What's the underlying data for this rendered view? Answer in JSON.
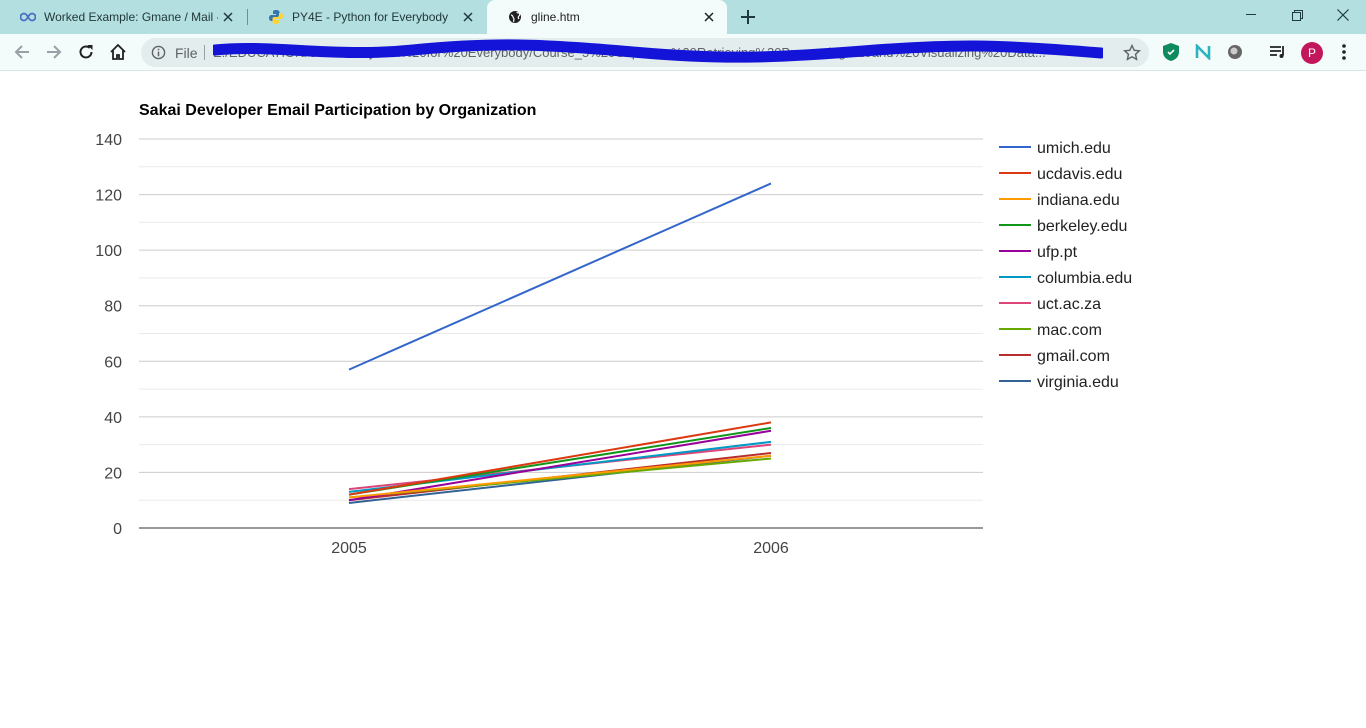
{
  "browser": {
    "tabs": [
      {
        "title": "Worked Example: Gmane / Mail -",
        "icon": "infinity-icon",
        "active": false
      },
      {
        "title": "PY4E - Python for Everybody",
        "icon": "python-icon",
        "active": false
      },
      {
        "title": "gline.htm",
        "icon": "globe-icon",
        "active": true
      }
    ],
    "omnibox": {
      "scheme_label": "File",
      "url": "E:/EDUCATION/Courses/Python%20for%20Everybody/Course_5%20Capstone%20Retrieving%20Processing%20and%20Visualizing%20Data..."
    },
    "profile_initial": "P"
  },
  "chart_data": {
    "type": "line",
    "title": "Sakai Developer Email Participation by Organization",
    "categories": [
      "2005",
      "2006"
    ],
    "ylim": [
      0,
      140
    ],
    "yticks": [
      "0",
      "20",
      "40",
      "60",
      "80",
      "100",
      "120",
      "140"
    ],
    "grid": true,
    "legend_position": "right",
    "series": [
      {
        "name": "umich.edu",
        "color": "#3366cc",
        "values": [
          57,
          124
        ]
      },
      {
        "name": "ucdavis.edu",
        "color": "#dc3912",
        "values": [
          12,
          38
        ]
      },
      {
        "name": "indiana.edu",
        "color": "#ff9900",
        "values": [
          11,
          26
        ]
      },
      {
        "name": "berkeley.edu",
        "color": "#109618",
        "values": [
          12,
          36
        ]
      },
      {
        "name": "ufp.pt",
        "color": "#990099",
        "values": [
          10,
          35
        ]
      },
      {
        "name": "columbia.edu",
        "color": "#0099c6",
        "values": [
          13,
          31
        ]
      },
      {
        "name": "uct.ac.za",
        "color": "#dd4477",
        "values": [
          14,
          30
        ]
      },
      {
        "name": "mac.com",
        "color": "#66aa00",
        "values": [
          11,
          25
        ]
      },
      {
        "name": "gmail.com",
        "color": "#b82e2e",
        "values": [
          10,
          27
        ]
      },
      {
        "name": "virginia.edu",
        "color": "#316395",
        "values": [
          9,
          26
        ]
      }
    ]
  }
}
